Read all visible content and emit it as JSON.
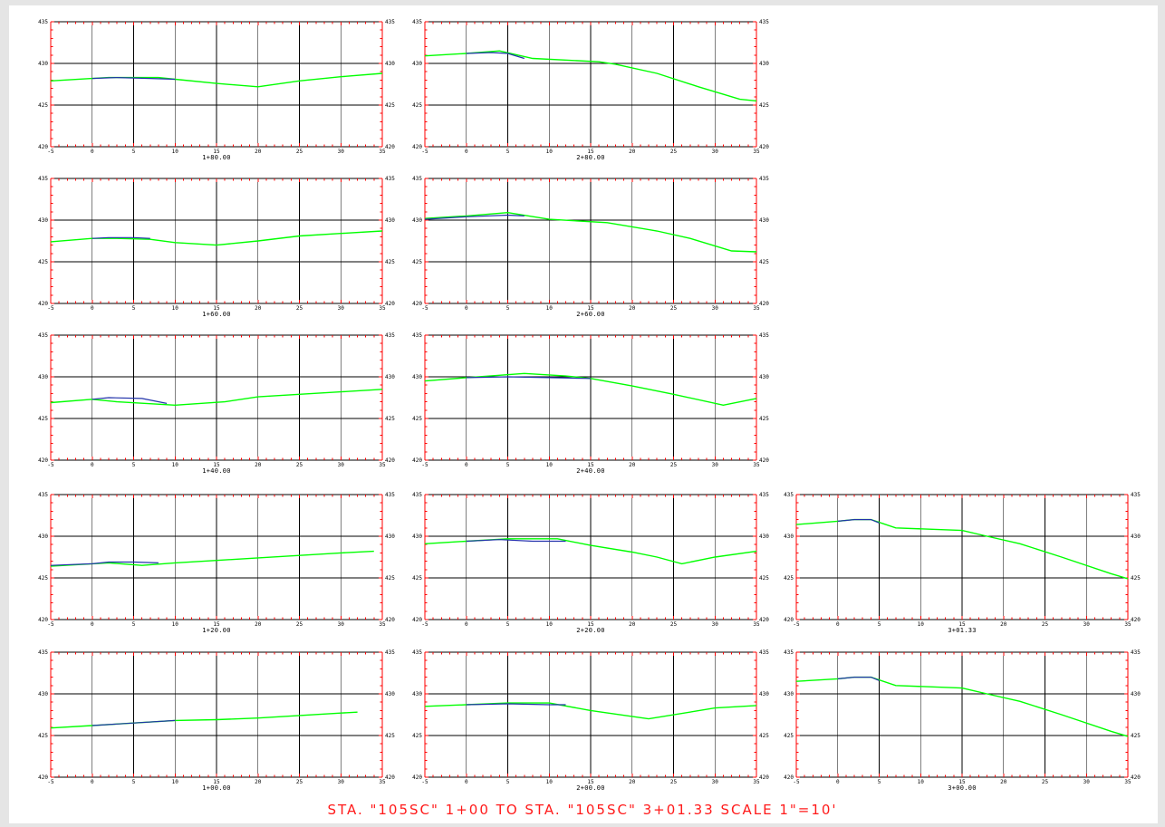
{
  "sheet_title": "STA. \"105SC\" 1+00 TO STA. \"105SC\" 3+01.33 SCALE 1\"=10'",
  "colors": {
    "existing_ground": "#00ff00",
    "proposed_grade": "#2233aa",
    "axis_ticks": "#ff0000",
    "title_text": "#ff1a1a"
  },
  "chart_data": [
    {
      "type": "line",
      "station": "1+80.00",
      "xlim": [
        -5,
        35
      ],
      "ylim": [
        420,
        435
      ],
      "x_ticks": [
        -5,
        0,
        5,
        10,
        15,
        20,
        25,
        30,
        35
      ],
      "y_ticks": [
        420,
        425,
        430,
        435
      ],
      "series": [
        {
          "points": [
            [
              -5,
              427.9
            ],
            [
              0,
              428.2
            ],
            [
              2,
              428.3
            ],
            [
              5,
              428.3
            ],
            [
              8,
              428.3
            ],
            [
              10,
              428.1
            ],
            [
              15,
              427.6
            ],
            [
              20,
              427.2
            ],
            [
              25,
              427.9
            ],
            [
              30,
              428.4
            ],
            [
              35,
              428.8
            ]
          ]
        },
        {
          "points": [
            [
              0,
              428.2
            ],
            [
              3,
              428.3
            ],
            [
              7,
              428.2
            ],
            [
              10,
              428.1
            ]
          ]
        }
      ]
    },
    {
      "type": "line",
      "station": "2+80.00",
      "xlim": [
        -5,
        35
      ],
      "ylim": [
        420,
        435
      ],
      "x_ticks": [
        -5,
        0,
        5,
        10,
        15,
        20,
        25,
        30,
        35
      ],
      "y_ticks": [
        420,
        425,
        430,
        435
      ],
      "series": [
        {
          "points": [
            [
              -5,
              430.9
            ],
            [
              0,
              431.2
            ],
            [
              4,
              431.5
            ],
            [
              8,
              430.6
            ],
            [
              16,
              430.2
            ],
            [
              18,
              429.9
            ],
            [
              23,
              428.8
            ],
            [
              28,
              427.2
            ],
            [
              33,
              425.7
            ],
            [
              35,
              425.5
            ]
          ]
        },
        {
          "points": [
            [
              0,
              431.2
            ],
            [
              3,
              431.3
            ],
            [
              5,
              431.2
            ],
            [
              7,
              430.6
            ]
          ]
        }
      ]
    },
    {
      "type": "line",
      "station": "1+60.00",
      "xlim": [
        -5,
        35
      ],
      "ylim": [
        420,
        435
      ],
      "x_ticks": [
        -5,
        0,
        5,
        10,
        15,
        20,
        25,
        30,
        35
      ],
      "y_ticks": [
        420,
        425,
        430,
        435
      ],
      "series": [
        {
          "points": [
            [
              -5,
              427.4
            ],
            [
              0,
              427.8
            ],
            [
              3,
              427.8
            ],
            [
              7,
              427.7
            ],
            [
              10,
              427.3
            ],
            [
              15,
              427.0
            ],
            [
              20,
              427.5
            ],
            [
              25,
              428.1
            ],
            [
              30,
              428.4
            ],
            [
              35,
              428.7
            ]
          ]
        },
        {
          "points": [
            [
              0,
              427.8
            ],
            [
              2,
              427.9
            ],
            [
              5,
              427.9
            ],
            [
              7,
              427.8
            ]
          ]
        }
      ]
    },
    {
      "type": "line",
      "station": "2+60.00",
      "xlim": [
        -5,
        35
      ],
      "ylim": [
        420,
        435
      ],
      "x_ticks": [
        -5,
        0,
        5,
        10,
        15,
        20,
        25,
        30,
        35
      ],
      "y_ticks": [
        420,
        425,
        430,
        435
      ],
      "series": [
        {
          "points": [
            [
              -5,
              430.2
            ],
            [
              0,
              430.5
            ],
            [
              5,
              430.9
            ],
            [
              10,
              430.1
            ],
            [
              17,
              429.7
            ],
            [
              23,
              428.7
            ],
            [
              27,
              427.8
            ],
            [
              32,
              426.3
            ],
            [
              35,
              426.2
            ]
          ]
        },
        {
          "points": [
            [
              -5,
              430.1
            ],
            [
              0,
              430.4
            ],
            [
              5,
              430.6
            ],
            [
              7,
              430.5
            ]
          ]
        }
      ]
    },
    {
      "type": "line",
      "station": "1+40.00",
      "xlim": [
        -5,
        35
      ],
      "ylim": [
        420,
        435
      ],
      "x_ticks": [
        -5,
        0,
        5,
        10,
        15,
        20,
        25,
        30,
        35
      ],
      "y_ticks": [
        420,
        425,
        430,
        435
      ],
      "series": [
        {
          "points": [
            [
              -5,
              426.9
            ],
            [
              0,
              427.3
            ],
            [
              3,
              427.0
            ],
            [
              10,
              426.6
            ],
            [
              16,
              427.0
            ],
            [
              20,
              427.6
            ],
            [
              25,
              427.9
            ],
            [
              30,
              428.2
            ],
            [
              35,
              428.5
            ]
          ]
        },
        {
          "points": [
            [
              0,
              427.3
            ],
            [
              2,
              427.5
            ],
            [
              6,
              427.4
            ],
            [
              9,
              426.8
            ]
          ]
        }
      ]
    },
    {
      "type": "line",
      "station": "2+40.00",
      "xlim": [
        -5,
        35
      ],
      "ylim": [
        420,
        435
      ],
      "x_ticks": [
        -5,
        0,
        5,
        10,
        15,
        20,
        25,
        30,
        35
      ],
      "y_ticks": [
        420,
        425,
        430,
        435
      ],
      "series": [
        {
          "points": [
            [
              -5,
              429.5
            ],
            [
              0,
              429.9
            ],
            [
              7,
              430.4
            ],
            [
              12,
              430.1
            ],
            [
              15,
              429.8
            ],
            [
              20,
              428.9
            ],
            [
              25,
              427.9
            ],
            [
              31,
              426.6
            ],
            [
              35,
              427.4
            ]
          ]
        },
        {
          "points": [
            [
              0,
              429.9
            ],
            [
              5,
              430.0
            ],
            [
              10,
              429.9
            ],
            [
              15,
              429.8
            ]
          ]
        }
      ]
    },
    {
      "type": "line",
      "station": "1+20.00",
      "xlim": [
        -5,
        35
      ],
      "ylim": [
        420,
        435
      ],
      "x_ticks": [
        -5,
        0,
        5,
        10,
        15,
        20,
        25,
        30,
        35
      ],
      "y_ticks": [
        420,
        425,
        430,
        435
      ],
      "series": [
        {
          "points": [
            [
              -5,
              426.4
            ],
            [
              0,
              426.7
            ],
            [
              2,
              426.8
            ],
            [
              6,
              426.5
            ],
            [
              10,
              426.8
            ],
            [
              15,
              427.1
            ],
            [
              20,
              427.4
            ],
            [
              25,
              427.7
            ],
            [
              30,
              428.0
            ],
            [
              34,
              428.2
            ]
          ]
        },
        {
          "points": [
            [
              -5,
              426.5
            ],
            [
              0,
              426.7
            ],
            [
              2,
              426.9
            ],
            [
              5,
              426.9
            ],
            [
              8,
              426.8
            ]
          ]
        }
      ]
    },
    {
      "type": "line",
      "station": "2+20.00",
      "xlim": [
        -5,
        35
      ],
      "ylim": [
        420,
        435
      ],
      "x_ticks": [
        -5,
        0,
        5,
        10,
        15,
        20,
        25,
        30,
        35
      ],
      "y_ticks": [
        420,
        425,
        430,
        435
      ],
      "series": [
        {
          "points": [
            [
              -5,
              429.1
            ],
            [
              0,
              429.4
            ],
            [
              5,
              429.7
            ],
            [
              11,
              429.7
            ],
            [
              15,
              428.9
            ],
            [
              20,
              428.1
            ],
            [
              23,
              427.5
            ],
            [
              26,
              426.7
            ],
            [
              30,
              427.5
            ],
            [
              35,
              428.2
            ]
          ]
        },
        {
          "points": [
            [
              0,
              429.4
            ],
            [
              4,
              429.6
            ],
            [
              8,
              429.4
            ],
            [
              12,
              429.4
            ]
          ]
        }
      ]
    },
    {
      "type": "line",
      "station": "3+01.33",
      "xlim": [
        -5,
        35
      ],
      "ylim": [
        420,
        435
      ],
      "x_ticks": [
        -5,
        0,
        5,
        10,
        15,
        20,
        25,
        30,
        35
      ],
      "y_ticks": [
        420,
        425,
        430,
        435
      ],
      "series": [
        {
          "points": [
            [
              -5,
              431.4
            ],
            [
              0,
              431.8
            ],
            [
              2,
              432.0
            ],
            [
              4,
              432.0
            ],
            [
              7,
              431.0
            ],
            [
              15,
              430.7
            ],
            [
              18,
              430.0
            ],
            [
              22,
              429.1
            ],
            [
              27,
              427.5
            ],
            [
              33,
              425.5
            ],
            [
              35,
              424.9
            ]
          ]
        },
        {
          "points": [
            [
              0,
              431.8
            ],
            [
              2,
              432.0
            ],
            [
              4,
              432.0
            ],
            [
              5,
              431.6
            ]
          ]
        }
      ]
    },
    {
      "type": "line",
      "station": "1+00.00",
      "xlim": [
        -5,
        35
      ],
      "ylim": [
        420,
        435
      ],
      "x_ticks": [
        -5,
        0,
        5,
        10,
        15,
        20,
        25,
        30,
        35
      ],
      "y_ticks": [
        420,
        425,
        430,
        435
      ],
      "series": [
        {
          "points": [
            [
              -5,
              425.9
            ],
            [
              0,
              426.2
            ],
            [
              5,
              426.5
            ],
            [
              10,
              426.8
            ],
            [
              15,
              426.9
            ],
            [
              20,
              427.1
            ],
            [
              25,
              427.4
            ],
            [
              30,
              427.7
            ],
            [
              32,
              427.8
            ]
          ]
        },
        {
          "points": [
            [
              0,
              426.2
            ],
            [
              5,
              426.5
            ],
            [
              10,
              426.8
            ]
          ]
        }
      ]
    },
    {
      "type": "line",
      "station": "2+00.00",
      "xlim": [
        -5,
        35
      ],
      "ylim": [
        420,
        435
      ],
      "x_ticks": [
        -5,
        0,
        5,
        10,
        15,
        20,
        25,
        30,
        35
      ],
      "y_ticks": [
        420,
        425,
        430,
        435
      ],
      "series": [
        {
          "points": [
            [
              -5,
              428.5
            ],
            [
              0,
              428.7
            ],
            [
              5,
              428.9
            ],
            [
              10,
              428.9
            ],
            [
              15,
              428.0
            ],
            [
              22,
              427.0
            ],
            [
              30,
              428.3
            ],
            [
              35,
              428.6
            ]
          ]
        },
        {
          "points": [
            [
              0,
              428.7
            ],
            [
              5,
              428.8
            ],
            [
              10,
              428.7
            ],
            [
              12,
              428.7
            ]
          ]
        }
      ]
    },
    {
      "type": "line",
      "station": "3+00.00",
      "xlim": [
        -5,
        35
      ],
      "ylim": [
        420,
        435
      ],
      "x_ticks": [
        -5,
        0,
        5,
        10,
        15,
        20,
        25,
        30,
        35
      ],
      "y_ticks": [
        420,
        425,
        430,
        435
      ],
      "series": [
        {
          "points": [
            [
              -5,
              431.5
            ],
            [
              0,
              431.8
            ],
            [
              2,
              432.0
            ],
            [
              4,
              432.0
            ],
            [
              7,
              431.0
            ],
            [
              15,
              430.7
            ],
            [
              18,
              430.0
            ],
            [
              22,
              429.1
            ],
            [
              27,
              427.5
            ],
            [
              33,
              425.5
            ],
            [
              35,
              424.9
            ]
          ]
        },
        {
          "points": [
            [
              0,
              431.8
            ],
            [
              2,
              432.0
            ],
            [
              4,
              432.0
            ],
            [
              5,
              431.6
            ]
          ]
        }
      ]
    }
  ]
}
